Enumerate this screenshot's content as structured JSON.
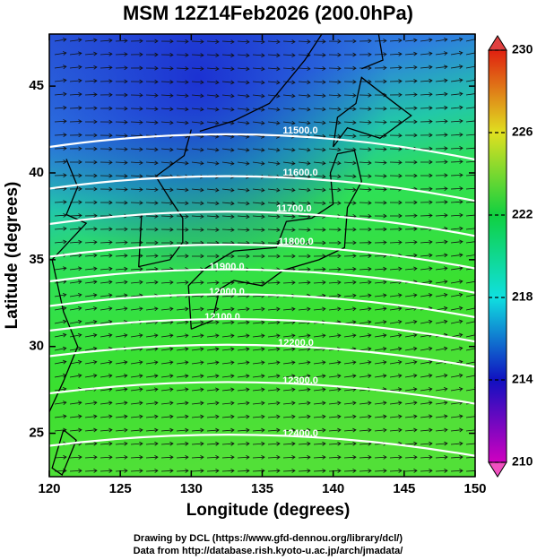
{
  "chart_data": {
    "type": "map",
    "title": "MSM 12Z14Feb2026 (200.0hPa)",
    "x_label": "Longitude (degrees)",
    "y_label": "Latitude  (degrees)",
    "xlim": [
      120,
      150
    ],
    "ylim": [
      22.5,
      48
    ],
    "xticks": [
      120,
      125,
      130,
      135,
      140,
      145,
      150
    ],
    "yticks": [
      25,
      30,
      35,
      40,
      45
    ],
    "colorbar": {
      "lim": [
        210,
        230
      ],
      "ticks": [
        210,
        214,
        218,
        222,
        226,
        230
      ]
    },
    "contours": [
      {
        "value": 11500,
        "label": "11500.0"
      },
      {
        "value": 11600,
        "label": "11600.0"
      },
      {
        "value": 11700,
        "label": "11700.0"
      },
      {
        "value": 11800,
        "label": "11800.0"
      },
      {
        "value": 11900,
        "label": "11900.0"
      },
      {
        "value": 12000,
        "label": "12000.0"
      },
      {
        "value": 12100,
        "label": "12100.0"
      },
      {
        "value": 12200,
        "label": "12200.0"
      },
      {
        "value": 12300,
        "label": "12300.0"
      },
      {
        "value": 12400,
        "label": "12400.0"
      }
    ],
    "credits": [
      "Drawing by DCL (https://www.gfd-dennou.org/library/dcl/)",
      "Data from http://database.rish.kyoto-u.ac.jp/arch/jmadata/"
    ]
  }
}
